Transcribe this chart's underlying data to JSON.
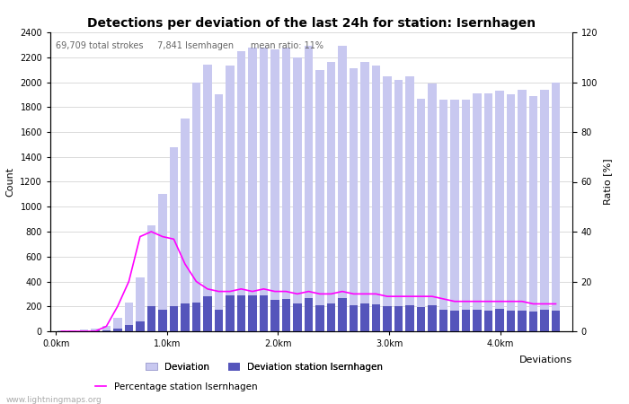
{
  "title": "Detections per deviation of the last 24h for station: Isernhagen",
  "xlabel": "Deviations",
  "ylabel_left": "Count",
  "ylabel_right": "Ratio [%]",
  "annotation": "69,709 total strokes     7,841 Isemhagen      mean ratio: 11%",
  "watermark": "www.lightningmaps.org",
  "ylim_left": [
    0,
    2400
  ],
  "ylim_right": [
    0,
    120
  ],
  "bar_width": 0.075,
  "x_ticks": [
    0.0,
    1.0,
    2.0,
    3.0,
    4.0
  ],
  "x_tick_labels": [
    "0.0km",
    "1.0km",
    "2.0km",
    "3.0km",
    "4.0km"
  ],
  "xlim": [
    -0.05,
    4.65
  ],
  "deviation_total": [
    5,
    8,
    15,
    25,
    45,
    110,
    230,
    430,
    850,
    1100,
    1480,
    1710,
    2000,
    2140,
    1900,
    2130,
    2250,
    2280,
    2280,
    2260,
    2280,
    2200,
    2290,
    2100,
    2160,
    2290,
    2110,
    2160,
    2130,
    2050,
    2020,
    2050,
    1870,
    1990,
    1860,
    1860,
    1860,
    1910,
    1910,
    1930,
    1900,
    1940,
    1890,
    1940,
    2000
  ],
  "deviation_station": [
    1,
    2,
    3,
    4,
    8,
    25,
    50,
    80,
    200,
    175,
    200,
    220,
    230,
    280,
    175,
    290,
    290,
    290,
    290,
    255,
    260,
    220,
    270,
    210,
    220,
    270,
    210,
    220,
    215,
    205,
    200,
    210,
    195,
    210,
    175,
    165,
    170,
    170,
    165,
    180,
    165,
    165,
    160,
    170,
    165
  ],
  "percentage": [
    0,
    0,
    0,
    0,
    2,
    10,
    20,
    38,
    40,
    38,
    37,
    27,
    20,
    17,
    16,
    16,
    17,
    16,
    17,
    16,
    16,
    15,
    16,
    15,
    15,
    16,
    15,
    15,
    15,
    14,
    14,
    14,
    14,
    14,
    13,
    12,
    12,
    12,
    12,
    12,
    12,
    12,
    11,
    11,
    11
  ],
  "color_bar_total": "#c8c8f0",
  "color_bar_station": "#5555bb",
  "color_line": "#ff00ff",
  "color_grid": "#cccccc",
  "color_bg": "#ffffff",
  "legend_deviation": "Deviation",
  "legend_deviation_station": "Deviation station Isernhagen",
  "legend_percentage": "Percentage station Isernhagen",
  "title_fontsize": 10,
  "axis_fontsize": 8,
  "tick_fontsize": 7,
  "annotation_fontsize": 7,
  "legend_fontsize": 7.5,
  "watermark_fontsize": 6.5
}
